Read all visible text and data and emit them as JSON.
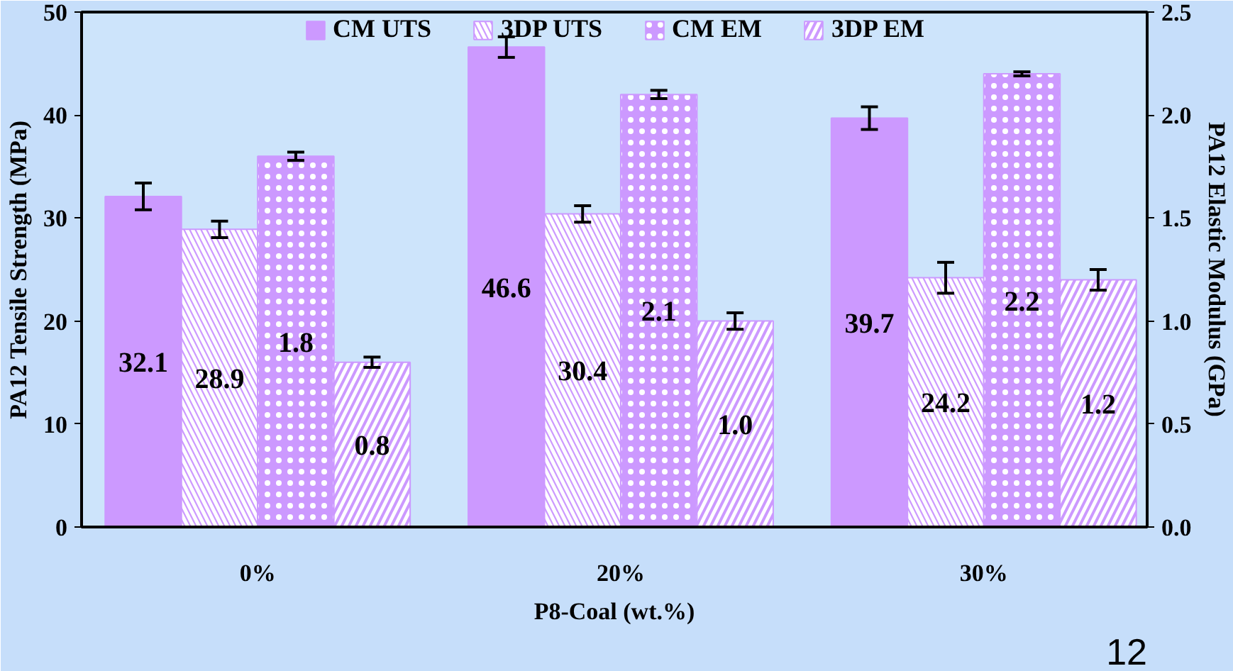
{
  "chart_data": {
    "type": "bar",
    "categories": [
      "0%",
      "20%",
      "30%"
    ],
    "xlabel": "P8-Coal (wt.%)",
    "ylabel": "PA12 Tensile Strength (MPa)",
    "y2label": "PA12 Elastic Modulus (GPa)",
    "series": [
      {
        "name": "CM UTS",
        "color": "#cc99ff",
        "values": [
          32.1,
          46.6,
          39.7
        ],
        "errors": [
          1.3,
          1.0,
          1.1
        ],
        "value_labels": [
          "32.1",
          "46.6",
          "39.7"
        ]
      },
      {
        "name": "3DP UTS",
        "color": "#cc99ff",
        "values": [
          28.9,
          30.4,
          24.2
        ],
        "errors": [
          0.8,
          0.8,
          1.5
        ],
        "value_labels": [
          "28.9",
          "30.4",
          "24.2"
        ]
      },
      {
        "name": "CM EM",
        "color": "#cc99ff",
        "values": [
          1.8,
          2.1,
          2.2
        ],
        "errors": [
          0.02,
          0.02,
          0.01
        ],
        "axis": "y2",
        "value_labels": [
          "1.8",
          "2.1",
          "2.2"
        ]
      },
      {
        "name": "3DP EM",
        "color": "#cc99ff",
        "values": [
          0.8,
          1.0,
          1.2
        ],
        "errors": [
          0.025,
          0.04,
          0.05
        ],
        "axis": "y2",
        "value_labels": [
          "0.8",
          "1.0",
          "1.2"
        ]
      }
    ],
    "ylim": [
      0,
      50
    ],
    "yticks": [
      0,
      10,
      20,
      30,
      40,
      50
    ],
    "y2lim": [
      0,
      2.5
    ],
    "y2ticks": [
      {
        "value": 0,
        "label": "0.0"
      },
      {
        "value": 0.5,
        "label": "0.5"
      },
      {
        "value": 1,
        "label": "1.0"
      },
      {
        "value": 1.5,
        "label": "1.5"
      },
      {
        "value": 2,
        "label": "2.0"
      },
      {
        "value": 2.5,
        "label": "2.5"
      }
    ],
    "grid": false,
    "legend": "top",
    "annotations": [
      "12"
    ]
  }
}
